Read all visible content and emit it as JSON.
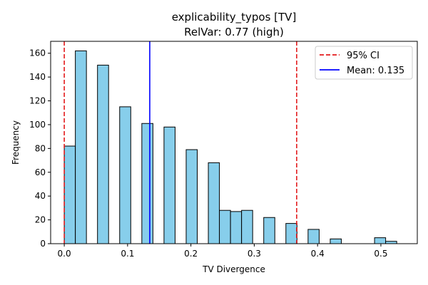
{
  "chart_data": {
    "type": "bar",
    "title": "explicability_typos [TV]",
    "subtitle": "RelVar: 0.77 (high)",
    "xlabel": "TV Divergence",
    "ylabel": "Frequency",
    "xlim": [
      -0.0215,
      0.5575
    ],
    "ylim": [
      0,
      170
    ],
    "bin_width": 0.0175,
    "bins": [
      {
        "x": 0.0,
        "value": 82
      },
      {
        "x": 0.0175,
        "value": 162
      },
      {
        "x": 0.0525,
        "value": 150
      },
      {
        "x": 0.0875,
        "value": 115
      },
      {
        "x": 0.1225,
        "value": 101
      },
      {
        "x": 0.1575,
        "value": 98
      },
      {
        "x": 0.1925,
        "value": 79
      },
      {
        "x": 0.2275,
        "value": 68
      },
      {
        "x": 0.245,
        "value": 28
      },
      {
        "x": 0.2625,
        "value": 27
      },
      {
        "x": 0.28,
        "value": 28
      },
      {
        "x": 0.315,
        "value": 22
      },
      {
        "x": 0.35,
        "value": 17
      },
      {
        "x": 0.385,
        "value": 12
      },
      {
        "x": 0.42,
        "value": 4
      },
      {
        "x": 0.49,
        "value": 5
      },
      {
        "x": 0.5075,
        "value": 2
      }
    ],
    "xticks": [
      {
        "value": 0.0,
        "label": "0.0"
      },
      {
        "value": 0.1,
        "label": "0.1"
      },
      {
        "value": 0.2,
        "label": "0.2"
      },
      {
        "value": 0.3,
        "label": "0.3"
      },
      {
        "value": 0.4,
        "label": "0.4"
      },
      {
        "value": 0.5,
        "label": "0.5"
      }
    ],
    "yticks": [
      {
        "value": 0,
        "label": "0"
      },
      {
        "value": 20,
        "label": "20"
      },
      {
        "value": 40,
        "label": "40"
      },
      {
        "value": 60,
        "label": "60"
      },
      {
        "value": 80,
        "label": "80"
      },
      {
        "value": 100,
        "label": "100"
      },
      {
        "value": 120,
        "label": "120"
      },
      {
        "value": 140,
        "label": "140"
      },
      {
        "value": 160,
        "label": "160"
      }
    ],
    "reference_lines": [
      {
        "name": "ci-lower",
        "value": 0.0,
        "color": "#e31a1c",
        "style": "dashed"
      },
      {
        "name": "ci-upper",
        "value": 0.367,
        "color": "#e31a1c",
        "style": "dashed"
      },
      {
        "name": "mean",
        "value": 0.135,
        "color": "#0000ff",
        "style": "solid"
      }
    ],
    "legend": {
      "placement": "top-right",
      "entries": [
        {
          "label": "95% CI",
          "color": "#e31a1c",
          "style": "dashed"
        },
        {
          "label": "Mean: 0.135",
          "color": "#0000ff",
          "style": "solid"
        }
      ]
    },
    "grid": false,
    "colors": {
      "bar_fill": "#87ceeb",
      "bar_edge": "#000000"
    }
  }
}
